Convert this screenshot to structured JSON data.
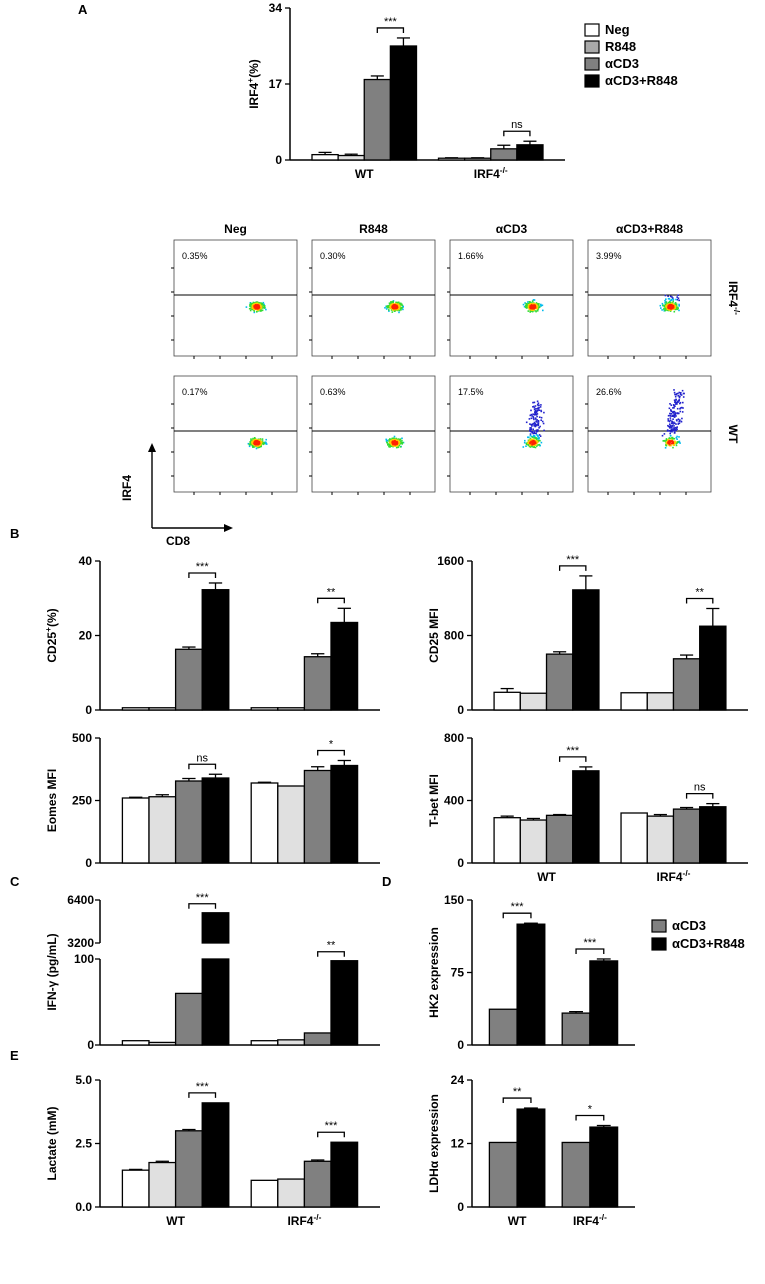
{
  "figure": {
    "panel_labels": [
      "A",
      "B",
      "C",
      "D",
      "E"
    ],
    "flow": {
      "columns": [
        "Neg",
        "R848",
        "αCD3",
        "αCD3+R848"
      ],
      "rows": [
        "IRF4",
        "WT"
      ],
      "row_sup": "-/-",
      "x_axis": "CD8",
      "y_axis": "IRF4",
      "percentages": [
        [
          "0.35%",
          "0.30%",
          "1.66%",
          "3.99%"
        ],
        [
          "0.17%",
          "0.63%",
          "17.5%",
          "26.6%"
        ]
      ]
    }
  },
  "legends": {
    "four": [
      {
        "label": "Neg",
        "color": "#ffffff"
      },
      {
        "label": "R848",
        "color": "#a9a9a9"
      },
      {
        "label": "αCD3",
        "color": "#808080"
      },
      {
        "label": "αCD3+R848",
        "color": "#000000"
      }
    ],
    "two": [
      {
        "label": "αCD3",
        "color": "#808080"
      },
      {
        "label": "αCD3+R848",
        "color": "#000000"
      }
    ]
  },
  "chart_data": [
    {
      "id": "A_irf4",
      "type": "bar",
      "ylabel": "IRF4",
      "ylabel_sup": "+",
      "ylabel_suffix": "(%)",
      "ylim": [
        0,
        34
      ],
      "yticks": [
        "0",
        "17",
        "34"
      ],
      "groups": [
        "WT",
        "IRF4"
      ],
      "group_sups": [
        "",
        "-/-"
      ],
      "series": [
        {
          "name": "Neg",
          "values": [
            1.2,
            0.4
          ],
          "errors": [
            0.5,
            0.1
          ]
        },
        {
          "name": "R848",
          "values": [
            1.0,
            0.4
          ],
          "errors": [
            0.3,
            0.1
          ]
        },
        {
          "name": "αCD3",
          "values": [
            18.0,
            2.5
          ],
          "errors": [
            0.8,
            0.8
          ]
        },
        {
          "name": "αCD3+R848",
          "values": [
            25.5,
            3.4
          ],
          "errors": [
            1.8,
            0.8
          ]
        }
      ],
      "significance": [
        "***",
        "ns"
      ]
    },
    {
      "id": "B_cd25_pct",
      "type": "bar",
      "ylabel": "CD25",
      "ylabel_sup": "+",
      "ylabel_suffix": "(%)",
      "ylim": [
        0,
        40
      ],
      "yticks": [
        "0",
        "20",
        "40"
      ],
      "groups": [
        "",
        ""
      ],
      "group_sups": [
        "",
        ""
      ],
      "series": [
        {
          "name": "Neg",
          "values": [
            0.6,
            0.6
          ],
          "errors": [
            0,
            0
          ]
        },
        {
          "name": "R848",
          "values": [
            0.6,
            0.6
          ],
          "errors": [
            0,
            0
          ]
        },
        {
          "name": "αCD3",
          "values": [
            16.3,
            14.3
          ],
          "errors": [
            0.6,
            0.8
          ]
        },
        {
          "name": "αCD3+R848",
          "values": [
            32.3,
            23.5
          ],
          "errors": [
            1.8,
            3.8
          ]
        }
      ],
      "significance": [
        "***",
        "**"
      ]
    },
    {
      "id": "B_cd25_mfi",
      "type": "bar",
      "ylabel": "CD25 MFI",
      "ylabel_sup": "",
      "ylabel_suffix": "",
      "ylim": [
        0,
        1600
      ],
      "yticks": [
        "0",
        "800",
        "1600"
      ],
      "groups": [
        "",
        ""
      ],
      "group_sups": [
        "",
        ""
      ],
      "series": [
        {
          "name": "Neg",
          "values": [
            190,
            185
          ],
          "errors": [
            40,
            0
          ]
        },
        {
          "name": "R848",
          "values": [
            180,
            185
          ],
          "errors": [
            0,
            0
          ]
        },
        {
          "name": "αCD3",
          "values": [
            600,
            550
          ],
          "errors": [
            25,
            40
          ]
        },
        {
          "name": "αCD3+R848",
          "values": [
            1290,
            900
          ],
          "errors": [
            150,
            190
          ]
        }
      ],
      "significance": [
        "***",
        "**"
      ]
    },
    {
      "id": "B_eomes",
      "type": "bar",
      "ylabel": "Eomes MFI",
      "ylabel_sup": "",
      "ylabel_suffix": "",
      "ylim": [
        0,
        500
      ],
      "yticks": [
        "0",
        "250",
        "500"
      ],
      "groups": [
        "",
        ""
      ],
      "group_sups": [
        "",
        ""
      ],
      "series": [
        {
          "name": "Neg",
          "values": [
            260,
            320
          ],
          "errors": [
            3,
            3
          ]
        },
        {
          "name": "R848",
          "values": [
            265,
            308
          ],
          "errors": [
            8,
            0
          ]
        },
        {
          "name": "αCD3",
          "values": [
            328,
            370
          ],
          "errors": [
            10,
            15
          ]
        },
        {
          "name": "αCD3+R848",
          "values": [
            340,
            390
          ],
          "errors": [
            15,
            20
          ]
        }
      ],
      "significance": [
        "ns",
        "*"
      ]
    },
    {
      "id": "B_tbet",
      "type": "bar",
      "ylabel": "T-bet MFI",
      "ylabel_sup": "",
      "ylabel_suffix": "",
      "ylim": [
        0,
        800
      ],
      "yticks": [
        "0",
        "400",
        "800"
      ],
      "groups": [
        "WT",
        "IRF4"
      ],
      "group_sups": [
        "",
        "-/-"
      ],
      "series": [
        {
          "name": "Neg",
          "values": [
            290,
            320
          ],
          "errors": [
            10,
            0
          ]
        },
        {
          "name": "R848",
          "values": [
            275,
            300
          ],
          "errors": [
            10,
            10
          ]
        },
        {
          "name": "αCD3",
          "values": [
            305,
            345
          ],
          "errors": [
            5,
            10
          ]
        },
        {
          "name": "αCD3+R848",
          "values": [
            590,
            360
          ],
          "errors": [
            25,
            20
          ]
        }
      ],
      "significance": [
        "***",
        "ns"
      ]
    },
    {
      "id": "C_ifng",
      "type": "bar",
      "ylabel": "IFN-γ (pg/mL)",
      "ylabel_sup": "",
      "ylabel_suffix": "",
      "broken_axis": {
        "lower": [
          0,
          100
        ],
        "upper": [
          3200,
          6400
        ]
      },
      "yticks": [
        "0",
        "100",
        "3200",
        "6400"
      ],
      "groups": [
        "",
        ""
      ],
      "group_sups": [
        "",
        ""
      ],
      "series": [
        {
          "name": "Neg",
          "values": [
            5,
            5
          ],
          "errors": [
            0,
            0
          ]
        },
        {
          "name": "R848",
          "values": [
            3,
            6
          ],
          "errors": [
            0,
            0
          ]
        },
        {
          "name": "αCD3",
          "values": [
            60,
            14
          ],
          "errors": [
            0,
            0
          ]
        },
        {
          "name": "αCD3+R848",
          "values": [
            5450,
            98
          ],
          "errors": [
            0,
            0
          ]
        }
      ],
      "significance": [
        "***",
        "**"
      ]
    },
    {
      "id": "D_hk2",
      "type": "bar",
      "ylabel": "HK2 expression",
      "ylabel_sup": "",
      "ylabel_suffix": "",
      "ylim": [
        0,
        150
      ],
      "yticks": [
        "0",
        "75",
        "150"
      ],
      "groups": [
        "",
        ""
      ],
      "group_sups": [
        "",
        ""
      ],
      "series": [
        {
          "name": "αCD3",
          "values": [
            37,
            33
          ],
          "errors": [
            0,
            1.5
          ]
        },
        {
          "name": "αCD3+R848",
          "values": [
            125,
            87
          ],
          "errors": [
            1,
            2
          ]
        }
      ],
      "significance": [
        "***",
        "***"
      ]
    },
    {
      "id": "E_lactate",
      "type": "bar",
      "ylabel": "Lactate (mM)",
      "ylabel_sup": "",
      "ylabel_suffix": "",
      "ylim": [
        0,
        5
      ],
      "yticks": [
        "0.0",
        "2.5",
        "5.0"
      ],
      "groups": [
        "WT",
        "IRF4"
      ],
      "group_sups": [
        "",
        "-/-"
      ],
      "series": [
        {
          "name": "Neg",
          "values": [
            1.45,
            1.05
          ],
          "errors": [
            0.03,
            0
          ]
        },
        {
          "name": "R848",
          "values": [
            1.75,
            1.1
          ],
          "errors": [
            0.05,
            0
          ]
        },
        {
          "name": "αCD3",
          "values": [
            3.0,
            1.8
          ],
          "errors": [
            0.05,
            0.05
          ]
        },
        {
          "name": "αCD3+R848",
          "values": [
            4.1,
            2.55
          ],
          "errors": [
            0,
            0
          ]
        }
      ],
      "significance": [
        "***",
        "***"
      ]
    },
    {
      "id": "E_ldha",
      "type": "bar",
      "ylabel": "LDHα expression",
      "ylabel_sup": "",
      "ylabel_suffix": "",
      "ylim": [
        0,
        24
      ],
      "yticks": [
        "0",
        "12",
        "24"
      ],
      "groups": [
        "WT",
        "IRF4"
      ],
      "group_sups": [
        "",
        "-/-"
      ],
      "series": [
        {
          "name": "αCD3",
          "values": [
            12.2,
            12.2
          ],
          "errors": [
            0,
            0
          ]
        },
        {
          "name": "αCD3+R848",
          "values": [
            18.5,
            15.1
          ],
          "errors": [
            0.2,
            0.3
          ]
        }
      ],
      "significance": [
        "**",
        "*"
      ]
    }
  ]
}
